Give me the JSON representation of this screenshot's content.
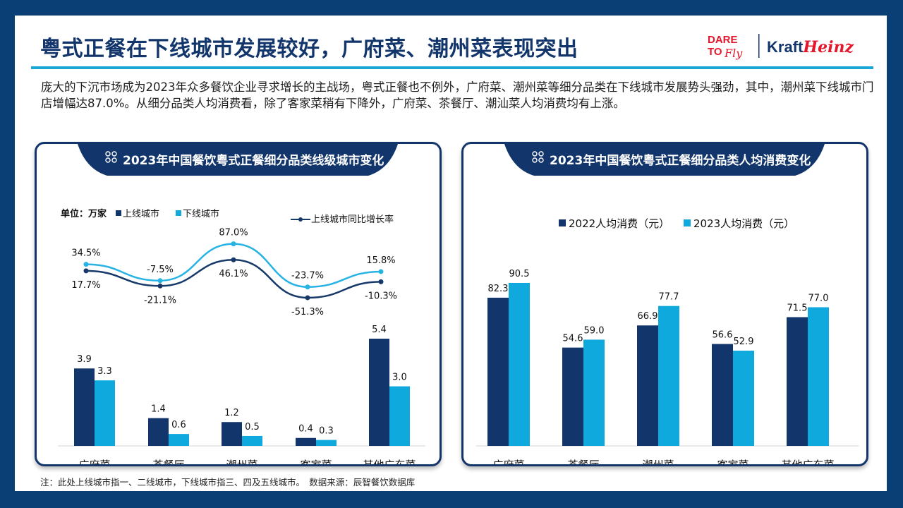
{
  "title": "粤式正餐在下线城市发展较好，广府菜、潮州菜表现突出",
  "intro": "庞大的下沉市场成为2023年众多餐饮企业寻求增长的主战场，粤式正餐也不例外，广府菜、潮州菜等细分品类在下线城市发展势头强劲，其中，潮州菜下线城市门店增幅达87.0%。从细分品类人均消费看，除了客家菜稍有下降外，广府菜、茶餐厅、潮汕菜人均消费均有上涨。",
  "logo": {
    "dare": "DARE",
    "to": "TO",
    "fly": "Fly",
    "brand_a": "Kraft",
    "brand_b": "Heinz"
  },
  "note": "注：此处上线城市指一、二线城市，下线城市指三、四及五线城市。　数据来源：辰智餐饮数据库",
  "colors": {
    "navy": "#12366b",
    "cyan": "#0fa9de",
    "line_upper": "#16396a",
    "line_lower": "#27b3e3"
  },
  "chart_data": [
    {
      "type": "bar",
      "title": "2023年中国餐饮粤式正餐细分品类线级城市变化",
      "unit_label": "单位：万家",
      "categories": [
        "广府菜",
        "茶餐厅",
        "潮州菜",
        "客家菜",
        "其他广东菜"
      ],
      "series": [
        {
          "name": "上线城市",
          "values": [
            3.9,
            1.4,
            1.2,
            0.4,
            5.4
          ],
          "labels": [
            "3.9",
            "1.4",
            "1.2",
            "0.4",
            "5.4"
          ],
          "color": "#12366b"
        },
        {
          "name": "下线城市",
          "values": [
            3.3,
            0.6,
            0.5,
            0.3,
            3.0
          ],
          "labels": [
            "3.3",
            "0.6",
            "0.5",
            "0.3",
            "3.0"
          ],
          "color": "#0fa9de"
        }
      ],
      "lines": [
        {
          "name": "上线城市同比增长率",
          "values": [
            17.7,
            -21.1,
            46.1,
            -51.3,
            -10.3
          ],
          "labels": [
            "17.7%",
            "-21.1%",
            "46.1%",
            "-51.3%",
            "-10.3%"
          ],
          "color": "#16396a"
        },
        {
          "name": "",
          "values": [
            34.5,
            -7.5,
            87.0,
            -23.7,
            15.8
          ],
          "labels": [
            "34.5%",
            "-7.5%",
            "87.0%",
            "-23.7%",
            "15.8%"
          ],
          "color": "#27b3e3"
        }
      ],
      "legend": [
        "上线城市",
        "下线城市",
        "上线城市同比增长率"
      ],
      "ylim": [
        0,
        6
      ]
    },
    {
      "type": "bar",
      "title": "2023年中国餐饮粤式正餐细分品类人均消费变化",
      "categories": [
        "广府菜",
        "茶餐厅",
        "潮州菜",
        "客家菜",
        "其他广东菜"
      ],
      "series": [
        {
          "name": "2022人均消费（元）",
          "values": [
            82.3,
            54.6,
            66.9,
            56.6,
            71.5
          ],
          "labels": [
            "82.3",
            "54.6",
            "66.9",
            "56.6",
            "71.5"
          ],
          "color": "#12366b"
        },
        {
          "name": "2023人均消费（元）",
          "values": [
            90.5,
            59.0,
            77.7,
            52.9,
            77.0
          ],
          "labels": [
            "90.5",
            "59.0",
            "77.7",
            "52.9",
            "77.0"
          ],
          "color": "#0fa9de"
        }
      ],
      "legend": [
        "2022人均消费（元）",
        "2023人均消费（元）"
      ],
      "ylim": [
        0,
        100
      ]
    }
  ]
}
